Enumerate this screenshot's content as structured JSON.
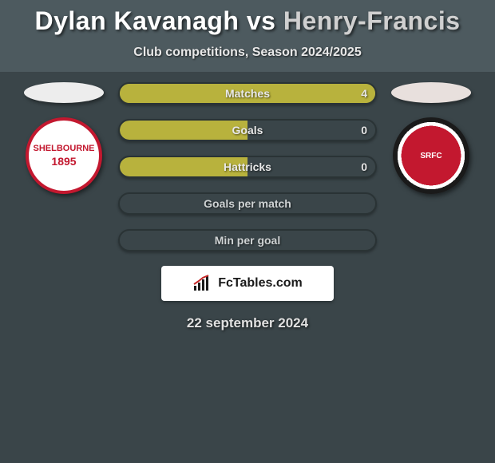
{
  "title": {
    "player1": "Dylan Kavanagh",
    "vs": "vs",
    "player2": "Henry-Francis"
  },
  "subtitle": "Club competitions, Season 2024/2025",
  "colors": {
    "title_p1": "#ffffff",
    "title_p2": "#d0d0d0",
    "bg_upper": "#4d5a5f",
    "bg_lower": "#3a4549",
    "bar_fill": "#b8b23d",
    "bar_border": "#2a3335",
    "bar_label": "#e9e9e9",
    "bar_label_dark": "#5b5b2f",
    "bar_val": "#e5e5e5"
  },
  "bars": [
    {
      "label": "Matches",
      "value": "4",
      "fill_pct": 100,
      "label_on_fill": true
    },
    {
      "label": "Goals",
      "value": "0",
      "fill_pct": 50,
      "label_on_fill": true
    },
    {
      "label": "Hattricks",
      "value": "0",
      "fill_pct": 50,
      "label_on_fill": true
    },
    {
      "label": "Goals per match",
      "value": "",
      "fill_pct": 0,
      "label_on_fill": false
    },
    {
      "label": "Min per goal",
      "value": "",
      "fill_pct": 0,
      "label_on_fill": false
    }
  ],
  "crest_left": {
    "line1": "SHELBOURNE",
    "line2": "1895"
  },
  "crest_right": {
    "text": "SRFC"
  },
  "brand": "FcTables.com",
  "date": "22 september 2024"
}
